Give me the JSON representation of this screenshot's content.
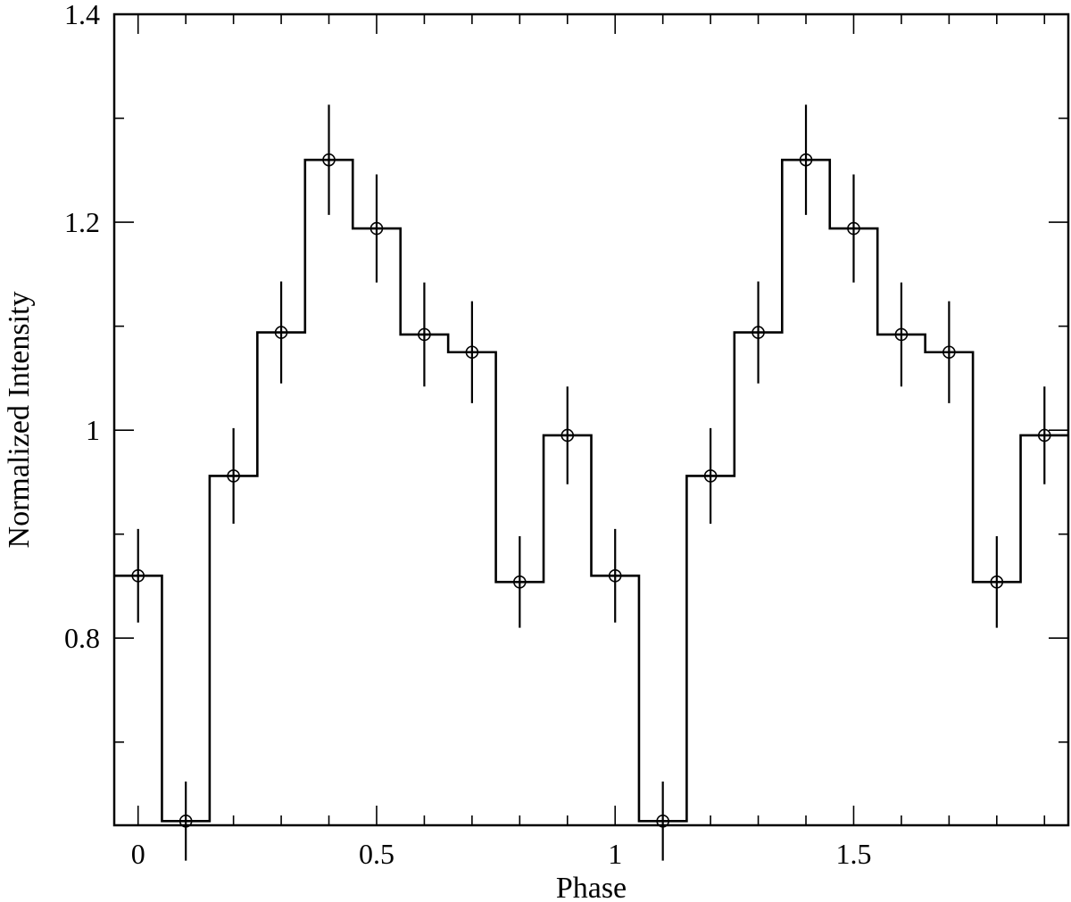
{
  "chart_data": {
    "type": "line",
    "drawstyle": "step-histogram-with-errorbars",
    "title": "",
    "xlabel": "Phase",
    "ylabel": "Normalized Intensity",
    "xlim": [
      -0.05,
      1.95
    ],
    "ylim": [
      0.62,
      1.4
    ],
    "xticks": [
      {
        "value": 0,
        "label": "0"
      },
      {
        "value": 0.5,
        "label": "0.5"
      },
      {
        "value": 1,
        "label": "1"
      },
      {
        "value": 1.5,
        "label": "1.5"
      }
    ],
    "xminor_step": 0.1,
    "yticks": [
      {
        "value": 0.8,
        "label": "0.8"
      },
      {
        "value": 1.0,
        "label": "1"
      },
      {
        "value": 1.2,
        "label": "1.2"
      },
      {
        "value": 1.4,
        "label": "1.4"
      }
    ],
    "yminor_step": 0.1,
    "bin_width": 0.1,
    "grid": false,
    "legend": "none",
    "series": [
      {
        "x": [
          0.0,
          0.1,
          0.2,
          0.3,
          0.4,
          0.5,
          0.6,
          0.7,
          0.8,
          0.9,
          1.0,
          1.1,
          1.2,
          1.3,
          1.4,
          1.5,
          1.6,
          1.7,
          1.8,
          1.9
        ],
        "y": [
          0.86,
          0.624,
          0.956,
          1.094,
          1.26,
          1.194,
          1.092,
          1.075,
          0.854,
          0.995,
          0.86,
          0.624,
          0.956,
          1.094,
          1.26,
          1.194,
          1.092,
          1.075,
          0.854,
          0.995
        ],
        "yerr": [
          0.045,
          0.038,
          0.046,
          0.049,
          0.053,
          0.052,
          0.05,
          0.049,
          0.044,
          0.047,
          0.045,
          0.038,
          0.046,
          0.049,
          0.053,
          0.052,
          0.05,
          0.049,
          0.044,
          0.047
        ]
      }
    ],
    "colors": {
      "line": "#000000",
      "background": "#ffffff"
    }
  }
}
